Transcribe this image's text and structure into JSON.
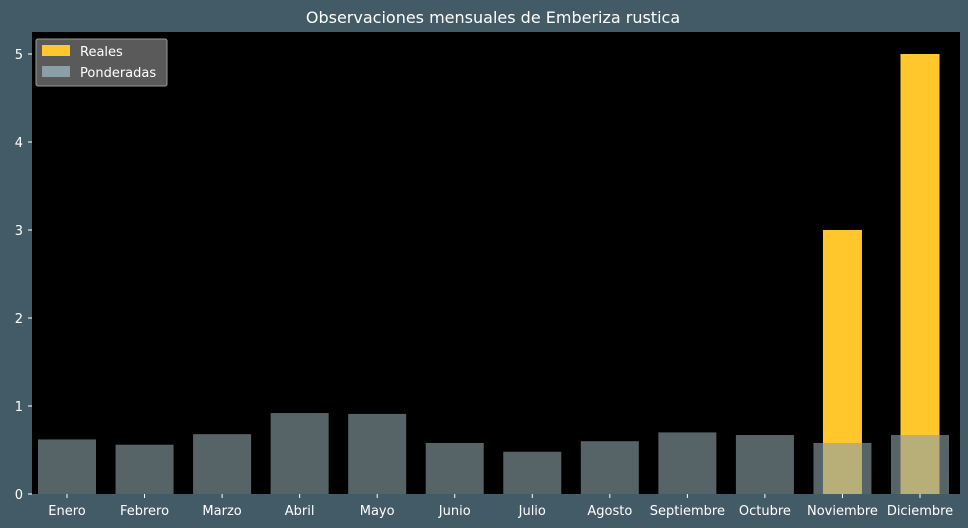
{
  "chart_data": {
    "type": "bar",
    "title": "Observaciones mensuales de Emberiza rustica",
    "xlabel": "",
    "ylabel": "",
    "categories": [
      "Enero",
      "Febrero",
      "Marzo",
      "Abril",
      "Mayo",
      "Junio",
      "Julio",
      "Agosto",
      "Septiembre",
      "Octubre",
      "Noviembre",
      "Diciembre"
    ],
    "series": [
      {
        "name": "Reales",
        "color": "#ffc72c",
        "values": [
          0,
          0,
          0,
          0,
          0,
          0,
          0,
          0,
          0,
          0,
          3,
          5
        ]
      },
      {
        "name": "Ponderadas",
        "color": "#8a9fa6",
        "values": [
          0.62,
          0.56,
          0.68,
          0.92,
          0.91,
          0.58,
          0.48,
          0.6,
          0.7,
          0.67,
          0.58,
          0.67
        ]
      }
    ],
    "yticks": [
      "0",
      "1",
      "2",
      "3",
      "4",
      "5"
    ],
    "ylim": [
      0,
      5.25
    ],
    "legend_position": "top-left",
    "grid": false,
    "background": "#425b66",
    "plot_background": "#000000"
  }
}
